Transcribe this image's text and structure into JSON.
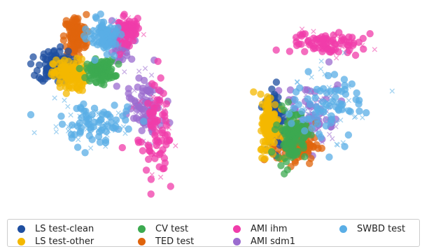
{
  "chart_data": [
    {
      "type": "scatter",
      "title": "",
      "xlabel": "",
      "ylabel": "",
      "grid": false,
      "axes_visible": false,
      "marker_styles": {
        "circle": "utterance embedding",
        "x": "cross-marked points"
      },
      "series": [
        {
          "name": "LS test-clean",
          "color": "#1f4fa0",
          "blobs": [
            [
              -12,
              8,
              3,
              3
            ]
          ]
        },
        {
          "name": "LS test-other",
          "color": "#f4b800",
          "blobs": [
            [
              -9,
              6,
              3,
              3
            ]
          ]
        },
        {
          "name": "CV test",
          "color": "#3caa50",
          "blobs": [
            [
              -3,
              7,
              2.5,
              2
            ]
          ]
        },
        {
          "name": "TED test",
          "color": "#e0640c",
          "blobs": [
            [
              -8,
              14,
              2,
              4
            ]
          ]
        },
        {
          "name": "AMI ihm",
          "color": "#f03caa",
          "blobs": [
            [
              2,
              15,
              2,
              3
            ],
            [
              8,
              -5,
              3,
              8
            ]
          ]
        },
        {
          "name": "AMI sdm1",
          "color": "#9b6ccf",
          "blobs": [
            [
              1,
              13,
              2,
              3
            ],
            [
              6,
              0,
              3,
              6
            ]
          ]
        },
        {
          "name": "SWBD test",
          "color": "#5aaee6",
          "blobs": [
            [
              -4,
              -4,
              7,
              4
            ],
            [
              -2,
              14,
              3,
              3
            ]
          ]
        }
      ]
    },
    {
      "type": "scatter",
      "title": "",
      "xlabel": "",
      "ylabel": "",
      "grid": false,
      "axes_visible": false,
      "series": [
        {
          "name": "LS test-clean",
          "color": "#1f4fa0",
          "blobs": [
            [
              -10,
              0,
              2,
              6
            ]
          ]
        },
        {
          "name": "LS test-other",
          "color": "#f4b800",
          "blobs": [
            [
              -11,
              -2,
              2,
              6
            ]
          ]
        },
        {
          "name": "CV test",
          "color": "#3caa50",
          "blobs": [
            [
              -6,
              -4,
              3,
              5
            ]
          ]
        },
        {
          "name": "TED test",
          "color": "#e0640c",
          "blobs": [
            [
              -5,
              -6,
              4,
              4
            ]
          ]
        },
        {
          "name": "AMI ihm",
          "color": "#f03caa",
          "blobs": [
            [
              2,
              15,
              7,
              2
            ]
          ]
        },
        {
          "name": "AMI sdm1",
          "color": "#9b6ccf",
          "blobs": [
            [
              -2,
              0,
              6,
              6
            ]
          ]
        },
        {
          "name": "SWBD test",
          "color": "#5aaee6",
          "blobs": [
            [
              2,
              2,
              7,
              7
            ]
          ]
        }
      ]
    }
  ],
  "legend": {
    "placement": "bottom",
    "items": [
      {
        "label": "LS test-clean",
        "color": "#1f4fa0"
      },
      {
        "label": "CV test",
        "color": "#3caa50"
      },
      {
        "label": "AMI ihm",
        "color": "#f03caa"
      },
      {
        "label": "SWBD test",
        "color": "#5aaee6"
      },
      {
        "label": "LS test-other",
        "color": "#f4b800"
      },
      {
        "label": "TED test",
        "color": "#e0640c"
      },
      {
        "label": "AMI sdm1",
        "color": "#9b6ccf"
      }
    ]
  }
}
